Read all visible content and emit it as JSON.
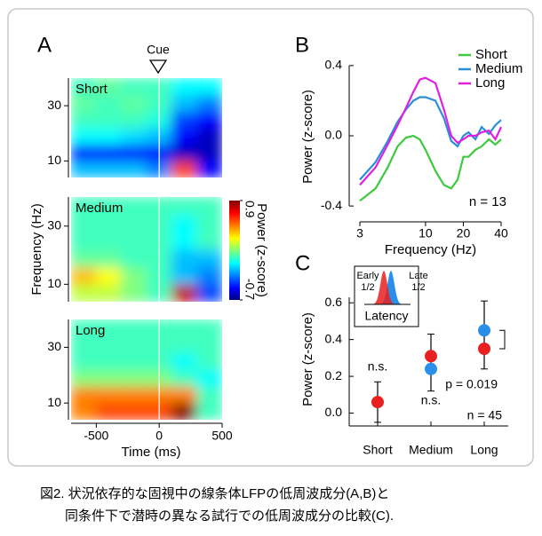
{
  "panels": [
    "A",
    "B",
    "C"
  ],
  "caption": [
    "図2. 状況依存的な固視中の線条体LFPの低周波成分(A,B)と",
    "同条件下で潜時の異なる試行での低周波成分の比較(C)."
  ],
  "chart_data": [
    {
      "type": "heatmap",
      "title": "Short",
      "annotation": "Cue",
      "x": [
        -600,
        -400,
        -200,
        0,
        200,
        400
      ],
      "y": [
        7,
        13,
        19,
        25,
        31,
        37
      ],
      "z": [
        [
          -0.2,
          -0.2,
          -0.2,
          -0.3,
          0.6,
          -0.5
        ],
        [
          -0.5,
          -0.5,
          -0.5,
          -0.5,
          -0.6,
          -0.6
        ],
        [
          -0.1,
          -0.1,
          -0.15,
          -0.2,
          -0.5,
          -0.6
        ],
        [
          0,
          0,
          0,
          -0.05,
          -0.4,
          -0.5
        ],
        [
          0.05,
          0,
          0.05,
          0,
          -0.2,
          -0.3
        ],
        [
          0,
          0.05,
          0,
          0,
          -0.1,
          -0.1
        ]
      ],
      "xlim": [
        -700,
        500
      ],
      "ylim": [
        4,
        40
      ],
      "yticks": [
        10,
        30
      ],
      "clim": [
        -0.7,
        0.9
      ]
    },
    {
      "type": "heatmap",
      "title": "Medium",
      "ylabel": "Frequency (Hz)",
      "colorbar_label": "Power (z-score)",
      "colorbar_ticks": [
        0.9,
        -0.7
      ],
      "x": [
        -600,
        -400,
        -200,
        0,
        200,
        400
      ],
      "y": [
        7,
        13,
        19,
        25,
        31,
        37
      ],
      "z": [
        [
          0.2,
          0.2,
          0.1,
          0,
          0.8,
          -0.4
        ],
        [
          0.4,
          0.3,
          0.1,
          0,
          -0.2,
          -0.3
        ],
        [
          0.05,
          0.05,
          0,
          0,
          -0.2,
          -0.2
        ],
        [
          0,
          0,
          0,
          0,
          -0.1,
          0
        ],
        [
          0,
          0,
          0,
          0,
          -0.1,
          0
        ],
        [
          0,
          0,
          0,
          0,
          0,
          0
        ]
      ],
      "xlim": [
        -700,
        500
      ],
      "ylim": [
        4,
        40
      ],
      "yticks": [
        10,
        30
      ],
      "clim": [
        -0.7,
        0.9
      ]
    },
    {
      "type": "heatmap",
      "title": "Long",
      "xlabel": "Time (ms)",
      "x": [
        -600,
        -400,
        -200,
        0,
        200,
        400
      ],
      "y": [
        7,
        13,
        19,
        25,
        31,
        37
      ],
      "z": [
        [
          0.5,
          0.6,
          0.6,
          0.6,
          0.9,
          0
        ],
        [
          0.5,
          0.5,
          0.5,
          0.5,
          0.5,
          0
        ],
        [
          0.1,
          0.1,
          0.1,
          0.1,
          0,
          -0.1
        ],
        [
          0,
          0,
          0,
          0,
          -0.1,
          0
        ],
        [
          0,
          0,
          0,
          0,
          0,
          0
        ],
        [
          0,
          0,
          0,
          0,
          0,
          0
        ]
      ],
      "xlim": [
        -700,
        500
      ],
      "ylim": [
        4,
        40
      ],
      "xticks": [
        -500,
        0,
        500
      ],
      "yticks": [
        10,
        30
      ],
      "clim": [
        -0.7,
        0.9
      ]
    },
    {
      "type": "line",
      "xlabel": "Frequency (Hz)",
      "ylabel": "Power (z-score)",
      "annotation": "n = 13",
      "xscale": "log",
      "x": [
        3,
        4,
        5,
        6,
        7,
        8,
        9,
        10,
        12,
        14,
        16,
        18,
        20,
        22,
        25,
        28,
        32,
        36,
        40
      ],
      "series": [
        {
          "name": "Short",
          "color": "#3ec93e",
          "values": [
            -0.37,
            -0.3,
            -0.18,
            -0.06,
            -0.01,
            0.0,
            -0.02,
            -0.08,
            -0.2,
            -0.28,
            -0.3,
            -0.25,
            -0.12,
            -0.12,
            -0.08,
            -0.06,
            -0.02,
            -0.05,
            -0.02
          ]
        },
        {
          "name": "Medium",
          "color": "#2a8fd8",
          "values": [
            -0.25,
            -0.15,
            -0.03,
            0.08,
            0.15,
            0.2,
            0.22,
            0.22,
            0.2,
            0.1,
            -0.03,
            -0.06,
            0.0,
            0.02,
            -0.02,
            0.05,
            0.01,
            0.06,
            0.09
          ]
        },
        {
          "name": "Long",
          "color": "#e020e0",
          "values": [
            -0.28,
            -0.18,
            -0.05,
            0.06,
            0.16,
            0.25,
            0.32,
            0.33,
            0.3,
            0.15,
            0.0,
            -0.04,
            -0.02,
            0.0,
            0.0,
            0.02,
            0.03,
            -0.02,
            0.05
          ]
        }
      ],
      "xlim": [
        3,
        40
      ],
      "xticks": [
        3,
        10,
        20,
        40
      ],
      "ylim": [
        -0.46,
        0.45
      ],
      "yticks": [
        -0.4,
        {
          "value": 0,
          "label": "0.0"
        },
        0.4
      ],
      "legend": "upper right"
    },
    {
      "type": "scatter",
      "ylabel": "Power (z-score)",
      "categories": [
        "Short",
        "Medium",
        "Long"
      ],
      "series": [
        {
          "name": "Late 1/2",
          "color": "#2a8fe8",
          "values": [
            null,
            0.24,
            0.45
          ]
        },
        {
          "name": "Early 1/2",
          "color": "#e82020",
          "values": [
            0.06,
            0.31,
            0.35
          ]
        }
      ],
      "error_low": [
        -0.05,
        0.12,
        0.24
      ],
      "error_high": [
        0.17,
        0.43,
        0.61
      ],
      "annotations": [
        "n.s.",
        "n.s.",
        "p = 0.019",
        "n = 45"
      ],
      "inset_label": "Latency",
      "ylim": [
        -0.07,
        0.63
      ],
      "yticks": [
        {
          "value": 0,
          "label": "0.0"
        },
        0.2,
        0.4,
        0.6
      ]
    }
  ]
}
